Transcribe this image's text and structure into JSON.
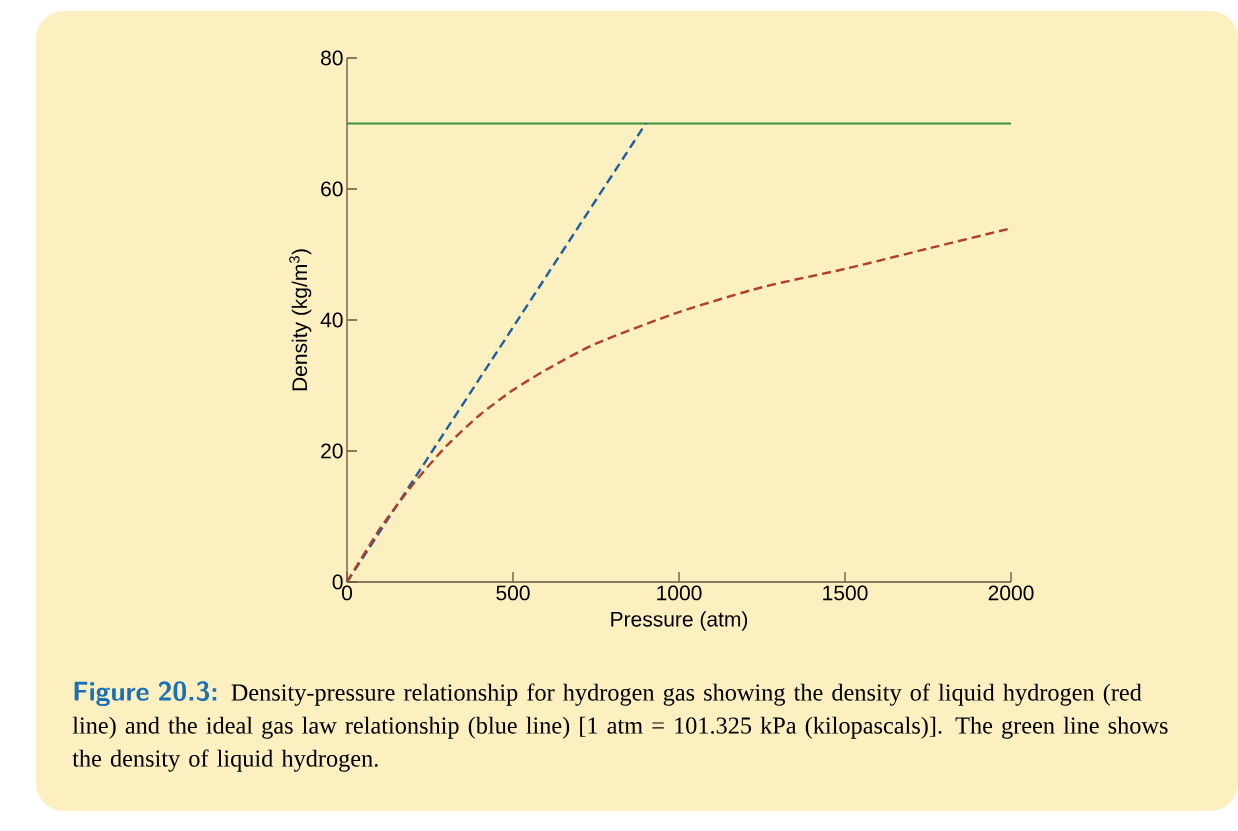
{
  "chart_data": {
    "type": "line",
    "xlabel": "Pressure (atm)",
    "ylabel": "Density (kg/m$^{3}$)",
    "xlim": [
      0,
      2000
    ],
    "ylim": [
      0,
      80
    ],
    "xticks": [
      0,
      500,
      1000,
      1500,
      2000
    ],
    "yticks": [
      0,
      20,
      40,
      60,
      80
    ],
    "grid": false,
    "marker": "none",
    "series": [
      {
        "color": "#1f5fa0",
        "line_style": "dashed",
        "x": [
          0,
          900
        ],
        "values": [
          0,
          70
        ]
      },
      {
        "color": "#b0402a",
        "line_style": "dashed",
        "x": [
          0,
          100,
          200,
          300,
          400,
          500,
          600,
          750,
          1000,
          1250,
          1500,
          1750,
          2000
        ],
        "values": [
          0,
          8.2,
          15.0,
          20.8,
          25.5,
          29.3,
          32.4,
          36.4,
          41.2,
          45.0,
          47.8,
          50.9,
          54.0
        ]
      }
    ],
    "ref_lines": [
      {
        "axis": "y",
        "value": 70,
        "color": "#3f8f3f",
        "line_style": "solid"
      }
    ],
    "annotations": [
      "Figure 20.3:",
      "Density-pressure relationship for hydrogen gas showing the density of liquid hydrogen (red line) and the ideal gas law relationship (blue line) [1 atm = 101.325 kPa (kilopascals)]. The green line shows the density of liquid hydrogen."
    ]
  }
}
